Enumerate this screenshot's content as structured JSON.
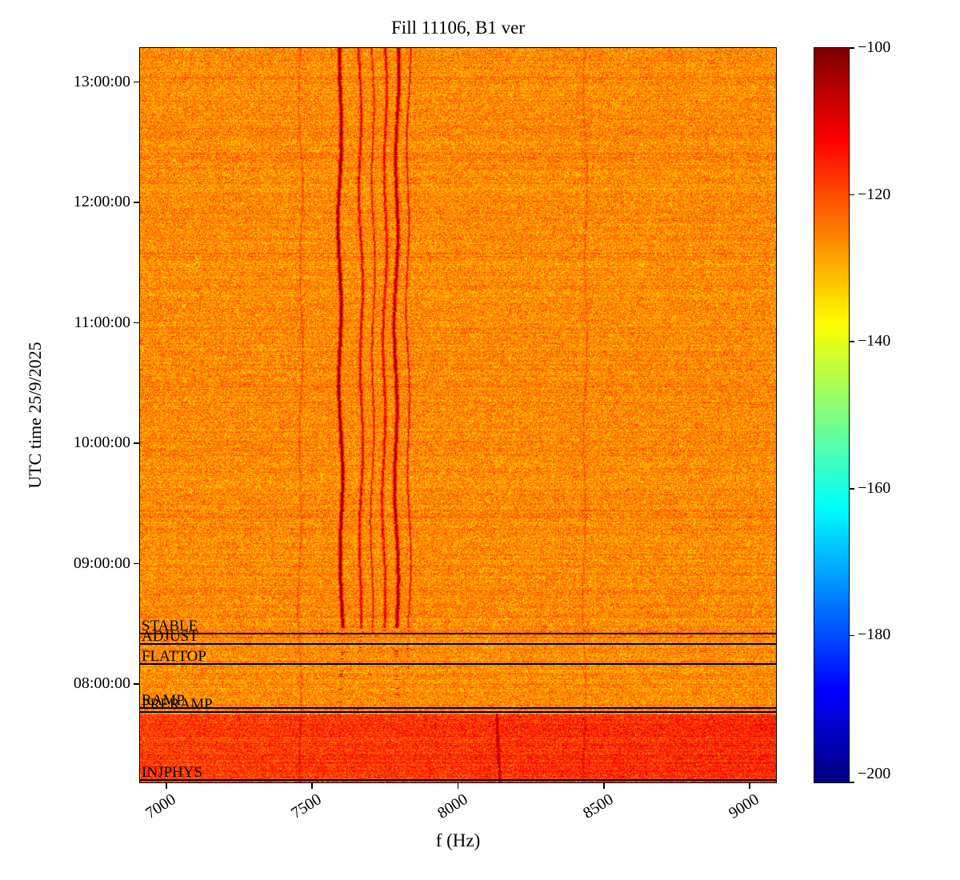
{
  "chart_data": {
    "type": "heatmap",
    "title": "Fill 11106, B1 ver",
    "xlabel": "f (Hz)",
    "ylabel": "UTC time 25/9/2025",
    "xlim": [
      6910,
      9090
    ],
    "xticks": [
      7000,
      7500,
      8000,
      8500,
      9000
    ],
    "time_axis": {
      "date": "25/9/2025",
      "top": "13:17:00",
      "bottom": "07:11:00",
      "yticks": [
        "13:00:00",
        "12:00:00",
        "11:00:00",
        "10:00:00",
        "09:00:00",
        "08:00:00"
      ]
    },
    "colorbar": {
      "cmap": "jet",
      "vmin": -200,
      "vmax": -100,
      "ticks": [
        -100,
        -120,
        -140,
        -160,
        -180,
        -200
      ]
    },
    "background": {
      "mean_db": -126,
      "noise_sigma_db": 4.5
    },
    "injection_band": {
      "start_time": "07:45:00",
      "extra_db": 7
    },
    "spectral_lines": [
      {
        "f": 7459,
        "strength": 6,
        "width": 2,
        "from": "07:11:00",
        "to": "13:17:00"
      },
      {
        "f": 7596,
        "strength": 26,
        "width": 4,
        "from": "08:28:00",
        "to": "13:17:00"
      },
      {
        "f": 7665,
        "strength": 17,
        "width": 3,
        "from": "08:28:00",
        "to": "13:17:00"
      },
      {
        "f": 7706,
        "strength": 14,
        "width": 2,
        "from": "08:28:00",
        "to": "13:17:00"
      },
      {
        "f": 7747,
        "strength": 16,
        "width": 3,
        "from": "08:28:00",
        "to": "13:17:00"
      },
      {
        "f": 7788,
        "strength": 23,
        "width": 4,
        "from": "08:28:00",
        "to": "13:17:00"
      },
      {
        "f": 7829,
        "strength": 14,
        "width": 2,
        "from": "08:28:00",
        "to": "13:17:00"
      },
      {
        "f": 8434,
        "strength": 5,
        "width": 2,
        "from": "07:11:00",
        "to": "13:17:00"
      },
      {
        "f": 8140,
        "strength": 14,
        "width": 3,
        "from": "07:11:00",
        "to": "07:45:00"
      }
    ],
    "beam_modes": [
      {
        "label": "STABLE",
        "time": "08:25:00"
      },
      {
        "label": "ADJUST",
        "time": "08:20:00"
      },
      {
        "label": "FLATTOP",
        "time": "08:10:00"
      },
      {
        "label": "RAMP",
        "time": "07:48:00"
      },
      {
        "label": "PRERAMP",
        "time": "07:46:00"
      },
      {
        "label": "INJPHYS",
        "time": "07:12:00"
      }
    ]
  }
}
